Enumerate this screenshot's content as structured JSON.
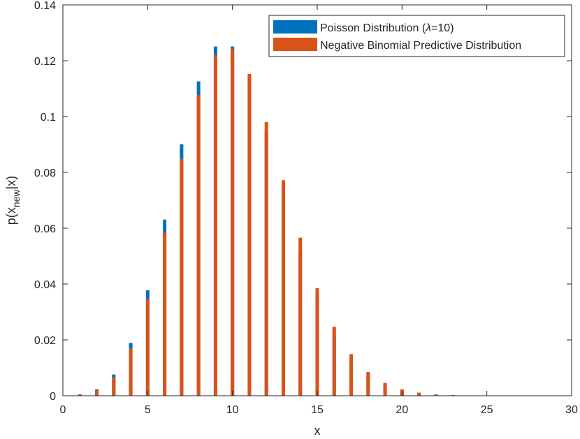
{
  "chart_data": {
    "type": "bar",
    "title": "",
    "xlabel": "x",
    "ylabel_main": "p(x",
    "ylabel_sub": "new",
    "ylabel_end": "|x)",
    "xlim": [
      0,
      30
    ],
    "ylim": [
      0,
      0.14
    ],
    "xticks": [
      0,
      5,
      10,
      15,
      20,
      25,
      30
    ],
    "yticks": [
      0,
      0.02,
      0.04,
      0.06,
      0.08,
      0.1,
      0.12,
      0.14
    ],
    "ytick_labels": [
      "0",
      "0.02",
      "0.04",
      "0.06",
      "0.08",
      "0.1",
      "0.12",
      "0.14"
    ],
    "grid": false,
    "legend_position": "top-right",
    "x": [
      1,
      2,
      3,
      4,
      5,
      6,
      7,
      8,
      9,
      10,
      11,
      12,
      13,
      14,
      15,
      16,
      17,
      18,
      19,
      20,
      21,
      22,
      23,
      24,
      25,
      26,
      27,
      28,
      29
    ],
    "series": [
      {
        "name": "Poisson Distribution (",
        "name_symbol": "λ",
        "name_end": "=10)",
        "color": "#0072BD",
        "values": [
          0.0005,
          0.0023,
          0.0076,
          0.0189,
          0.0378,
          0.0631,
          0.0901,
          0.1126,
          0.1251,
          0.1251,
          0.1137,
          0.0948,
          0.0729,
          0.0521,
          0.0347,
          0.0217,
          0.0128,
          0.0071,
          0.0037,
          0.0019,
          0.0009,
          0.0004,
          0.0002,
          0.0001,
          0,
          0,
          0,
          0,
          0
        ]
      },
      {
        "name": "Negative Binomial Predictive Distribution",
        "color": "#D95319",
        "values": [
          0.0004,
          0.0019,
          0.0066,
          0.0169,
          0.0345,
          0.0584,
          0.0848,
          0.1077,
          0.122,
          0.1243,
          0.1153,
          0.098,
          0.0772,
          0.0566,
          0.0385,
          0.0247,
          0.0149,
          0.0085,
          0.0046,
          0.0023,
          0.0011,
          0.0005,
          0.0002,
          0.0001,
          0,
          0,
          0,
          0,
          0
        ]
      }
    ]
  }
}
